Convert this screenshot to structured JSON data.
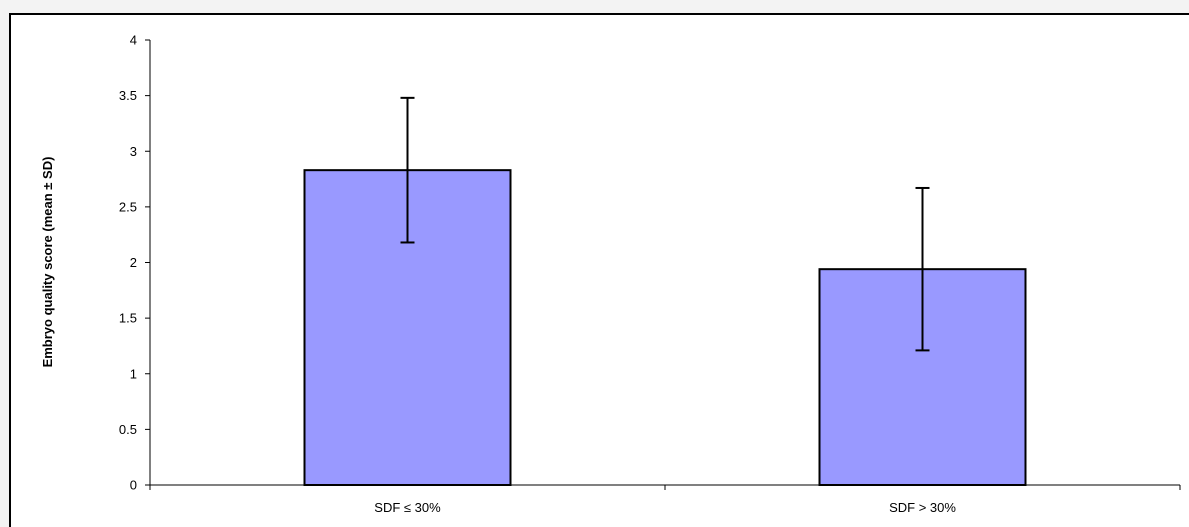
{
  "chart_data": {
    "type": "bar",
    "title": "",
    "xlabel": "",
    "ylabel": "Embryo quality score (mean ± SD)",
    "ylim": [
      0,
      4
    ],
    "yticks": [
      0,
      0.5,
      1,
      1.5,
      2,
      2.5,
      3,
      3.5,
      4
    ],
    "ytick_labels": [
      "0",
      "0.5",
      "1",
      "1.5",
      "2",
      "2.5",
      "3",
      "3.5",
      "4"
    ],
    "categories": [
      "SDF ≤ 30%",
      "SDF > 30%"
    ],
    "values": [
      2.83,
      1.94
    ],
    "errors": [
      0.65,
      0.73
    ],
    "grid": false,
    "legend": "none",
    "bar_color": "#9999ff",
    "edge_color": "#000000"
  }
}
